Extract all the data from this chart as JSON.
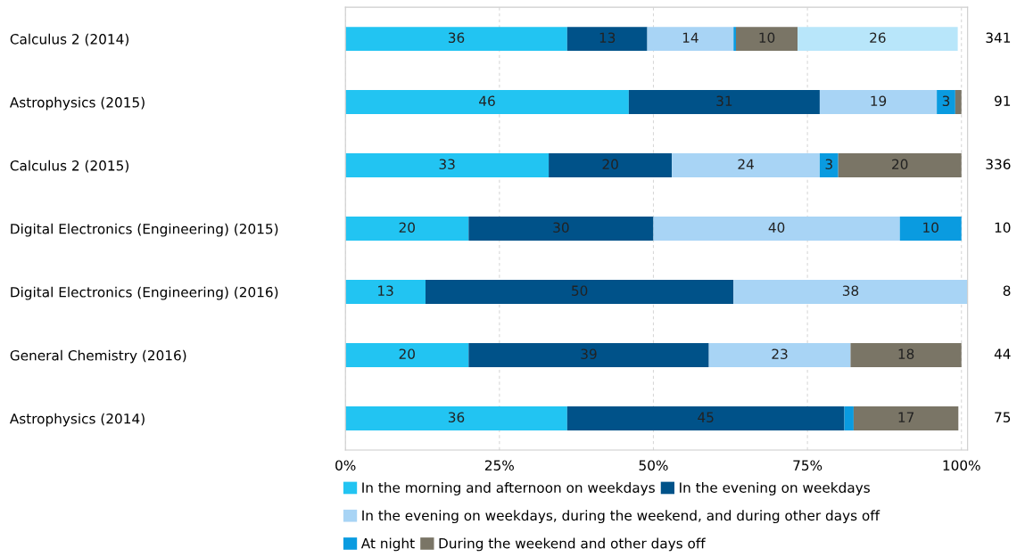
{
  "chart_data": {
    "type": "bar",
    "orientation": "horizontal",
    "stacked": true,
    "categories": [
      "Calculus 2 (2014)",
      "Astrophysics (2015)",
      "Calculus 2 (2015)",
      "Digital Electronics (Engineering) (2015)",
      "Digital Electronics (Engineering) (2016)",
      "General Chemistry (2016)",
      "Astrophysics (2014)"
    ],
    "series": [
      {
        "name": "In the morning and afternoon on weekdays",
        "color": "#22c4f2",
        "values": [
          36,
          46,
          33,
          20,
          13,
          20,
          36
        ]
      },
      {
        "name": "In the evening on weekdays",
        "color": "#005289",
        "values": [
          13,
          31,
          20,
          30,
          50,
          39,
          45
        ]
      },
      {
        "name": "In the evening on weekdays, during the weekend, and during other days off",
        "color": "#a8d4f5",
        "values": [
          14,
          19,
          24,
          40,
          38,
          23,
          null
        ]
      },
      {
        "name": "At night",
        "color": "#0a9be0",
        "values": [
          0.4,
          3,
          3,
          10,
          null,
          null,
          1.5
        ],
        "value_labels": [
          null,
          "3",
          "3",
          "10",
          null,
          null,
          null
        ]
      },
      {
        "name": "During the weekend and other days off",
        "color": "#7a7566",
        "values": [
          10,
          1,
          20,
          null,
          null,
          18,
          17
        ],
        "value_labels": [
          "10",
          null,
          "20",
          null,
          null,
          "18",
          "17"
        ]
      },
      {
        "color": "#b8e6fa",
        "values": [
          26,
          null,
          null,
          null,
          null,
          null,
          null
        ]
      }
    ],
    "data_labels": true,
    "annotations": [
      "341",
      "91",
      "336",
      "10",
      "8",
      "44",
      "75"
    ],
    "xlim": [
      0,
      101
    ],
    "xticks": [
      {
        "value": 0,
        "label": "0%"
      },
      {
        "value": 25,
        "label": "25%"
      },
      {
        "value": 50,
        "label": "50%"
      },
      {
        "value": 75,
        "label": "75%"
      },
      {
        "value": 100,
        "label": "100%"
      }
    ],
    "grid": "x",
    "legend": "bottom"
  }
}
